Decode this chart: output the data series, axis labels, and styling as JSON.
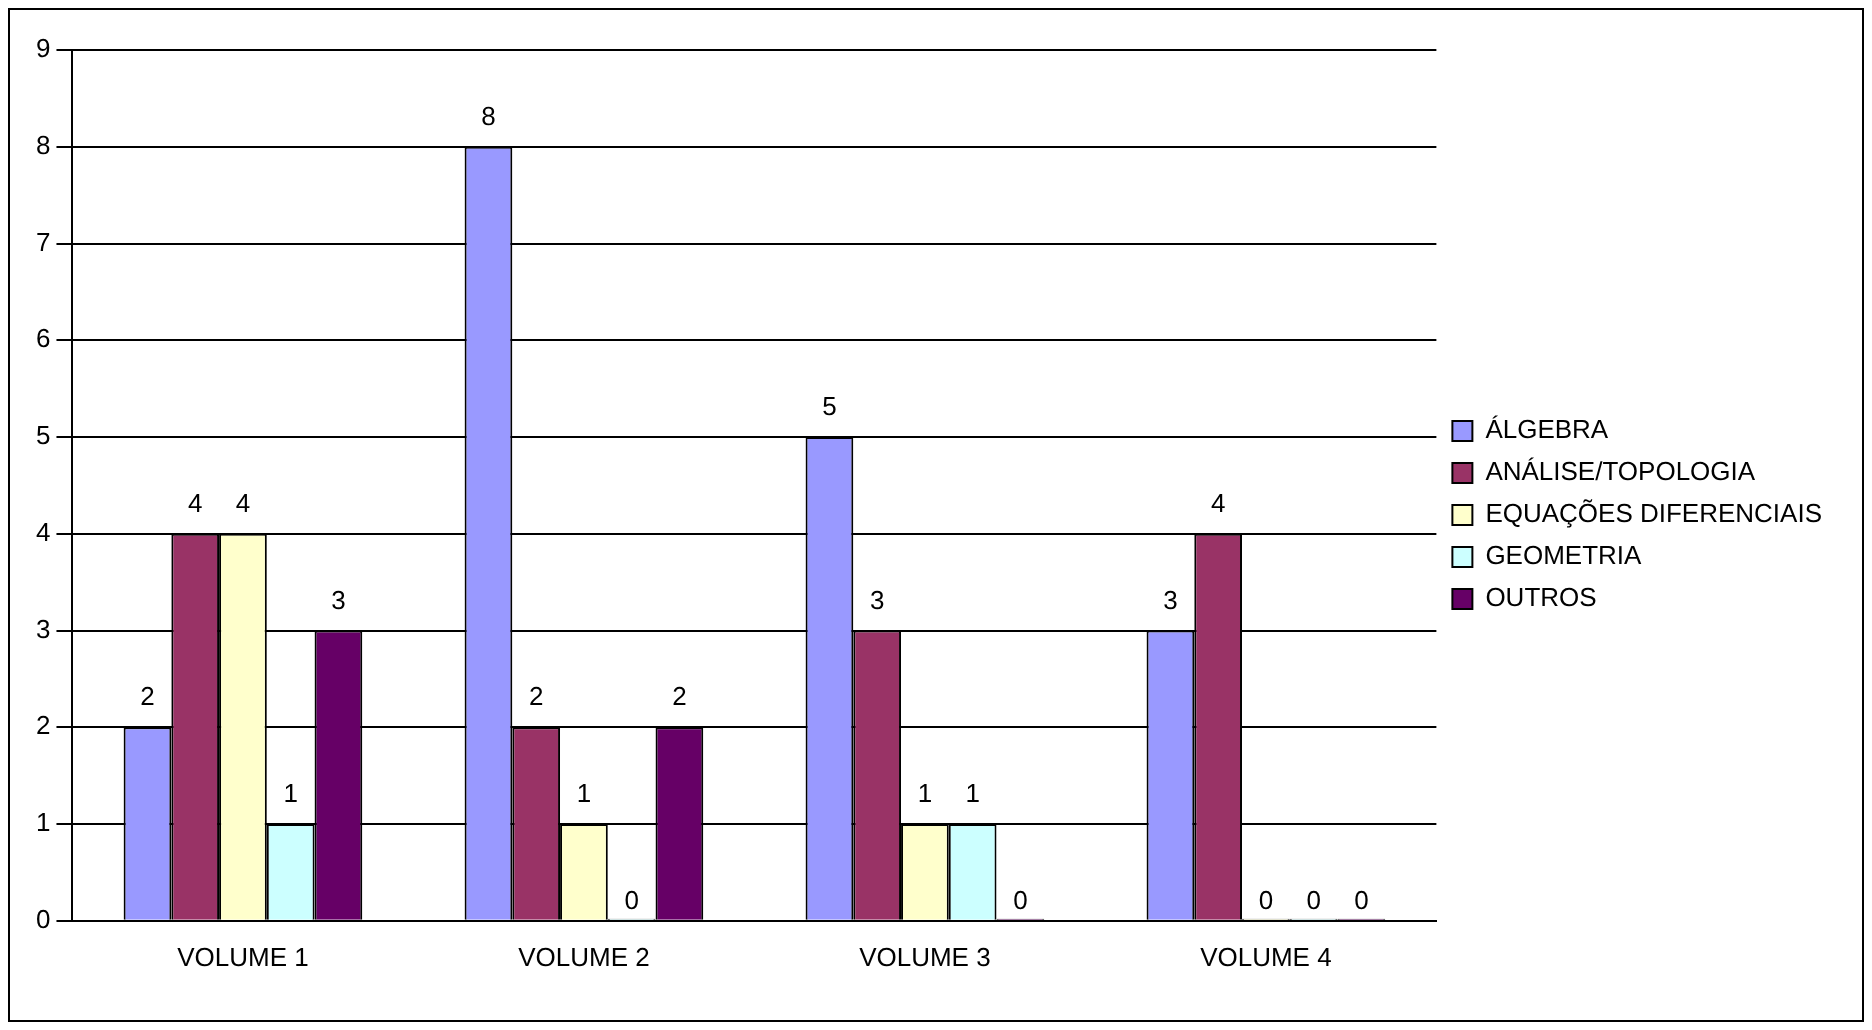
{
  "chart_data": {
    "type": "bar",
    "categories": [
      "VOLUME 1",
      "VOLUME 2",
      "VOLUME 3",
      "VOLUME 4"
    ],
    "series": [
      {
        "name": "ÁLGEBRA",
        "color": "#9999ff",
        "values": [
          2,
          8,
          5,
          3
        ]
      },
      {
        "name": "ANÁLISE/TOPOLOGIA",
        "color": "#993366",
        "values": [
          4,
          2,
          3,
          4
        ]
      },
      {
        "name": "EQUAÇÕES DIFERENCIAIS",
        "color": "#ffffcc",
        "values": [
          4,
          1,
          1,
          0
        ]
      },
      {
        "name": "GEOMETRIA",
        "color": "#ccffff",
        "values": [
          1,
          0,
          1,
          0
        ]
      },
      {
        "name": "OUTROS",
        "color": "#660066",
        "values": [
          3,
          2,
          0,
          0
        ]
      }
    ],
    "ylim": [
      0,
      9
    ],
    "yticks": [
      0,
      1,
      2,
      3,
      4,
      5,
      6,
      7,
      8,
      9
    ],
    "grid": "y",
    "legend": "right",
    "data_labels": true
  }
}
